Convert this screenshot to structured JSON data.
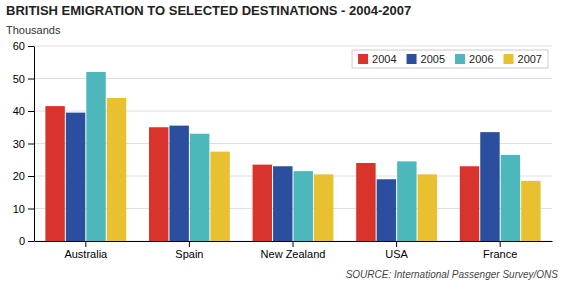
{
  "chart_data": {
    "type": "bar",
    "title": "BRITISH EMIGRATION TO SELECTED DESTINATIONS - 2004-2007",
    "ylabel": "Thousands",
    "annotations": [
      "SOURCE: International Passenger Survey/ONS"
    ],
    "categories": [
      "Australia",
      "Spain",
      "New Zealand",
      "USA",
      "France"
    ],
    "series": [
      {
        "name": "2004",
        "color": "#d9342b",
        "values": [
          41.5,
          35.0,
          23.5,
          24.0,
          23.0
        ]
      },
      {
        "name": "2005",
        "color": "#2b4f9e",
        "values": [
          39.5,
          35.5,
          23.0,
          19.0,
          33.5
        ]
      },
      {
        "name": "2006",
        "color": "#4db8bc",
        "values": [
          52.0,
          33.0,
          21.5,
          24.5,
          26.5
        ]
      },
      {
        "name": "2007",
        "color": "#e8c030",
        "values": [
          44.0,
          27.5,
          20.5,
          20.5,
          18.5
        ]
      }
    ],
    "ylim": [
      0,
      60
    ],
    "yticks": [
      0,
      10,
      20,
      30,
      40,
      50,
      60
    ],
    "grid": true,
    "legend": "upper right"
  }
}
